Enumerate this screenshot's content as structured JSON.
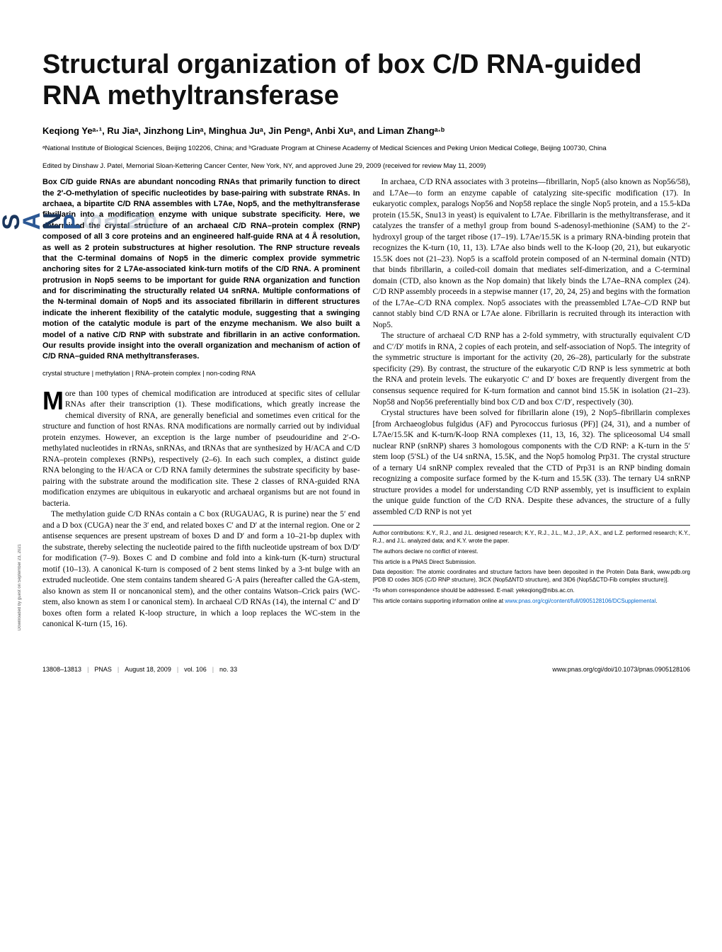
{
  "title": "Structural organization of box C/D RNA-guided RNA methyltransferase",
  "authors": "Keqiong Yeᵃ·¹, Ru Jiaᵃ, Jinzhong Linᵃ, Minghua Juᵃ, Jin Pengᵃ, Anbi Xuᵃ, and Liman Zhangᵃ·ᵇ",
  "affiliations": "ᵃNational Institute of Biological Sciences, Beijing 102206, China; and ᵇGraduate Program at Chinese Academy of Medical Sciences and Peking Union Medical College, Beijing 100730, China",
  "edited_by": "Edited by Dinshaw J. Patel, Memorial Sloan-Kettering Cancer Center, New York, NY, and approved June 29, 2009 (received for review May 11, 2009)",
  "abstract": "Box C/D guide RNAs are abundant noncoding RNAs that primarily function to direct the 2′-O-methylation of specific nucleotides by base-pairing with substrate RNAs. In archaea, a bipartite C/D RNA assembles with L7Ae, Nop5, and the methyltransferase fibrillarin into a modification enzyme with unique substrate specificity. Here, we determined the crystal structure of an archaeal C/D RNA–protein complex (RNP) composed of all 3 core proteins and an engineered half-guide RNA at 4 Å resolution, as well as 2 protein substructures at higher resolution. The RNP structure reveals that the C-terminal domains of Nop5 in the dimeric complex provide symmetric anchoring sites for 2 L7Ae-associated kink-turn motifs of the C/D RNA. A prominent protrusion in Nop5 seems to be important for guide RNA organization and function and for discriminating the structurally related U4 snRNA. Multiple conformations of the N-terminal domain of Nop5 and its associated fibrillarin in different structures indicate the inherent flexibility of the catalytic module, suggesting that a swinging motion of the catalytic module is part of the enzyme mechanism. We also built a model of a native C/D RNP with substrate and fibrillarin in an active conformation. Our results provide insight into the overall organization and mechanism of action of C/D RNA–guided RNA methyltransferases.",
  "keywords": "crystal structure | methylation | RNA–protein complex | non-coding RNA",
  "dropcap_letter": "M",
  "body_col1_p1": "ore than 100 types of chemical modification are introduced at specific sites of cellular RNAs after their transcription (1). These modifications, which greatly increase the chemical diversity of RNA, are generally beneficial and sometimes even critical for the structure and function of host RNAs. RNA modifications are normally carried out by individual protein enzymes. However, an exception is the large number of pseudouridine and 2′-O-methylated nucleotides in rRNAs, snRNAs, and tRNAs that are synthesized by H/ACA and C/D RNA–protein complexes (RNPs), respectively (2–6). In each such complex, a distinct guide RNA belonging to the H/ACA or C/D RNA family determines the substrate specificity by base-pairing with the substrate around the modification site. These 2 classes of RNA-guided RNA modification enzymes are ubiquitous in eukaryotic and archaeal organisms but are not found in bacteria.",
  "body_col1_p2": "The methylation guide C/D RNAs contain a C box (RUGAUAG, R is purine) near the 5′ end and a D box (CUGA) near the 3′ end, and related boxes C′ and D′ at the internal region. One or 2 antisense sequences are present upstream of boxes D and D′ and form a 10–21-bp duplex with the substrate, thereby selecting the nucleotide paired to the fifth nucleotide upstream of box D/D′ for modification (7–9). Boxes C and D combine and fold into a kink-turn (K-turn) structural motif (10–13). A canonical K-turn is composed of 2 bent stems linked by a 3-nt bulge with an extruded nucleotide. One stem contains tandem sheared G·A pairs (hereafter called the GA-stem, also known as stem II or noncanonical stem), and the other contains Watson–Crick pairs (WC-stem, also known as stem I or canonical stem). In archaeal C/D RNAs (14), the internal C′ and D′ boxes often form a related K-loop structure, in which a loop replaces the WC-stem in the canonical K-turn (15, 16).",
  "body_col2_p1": "In archaea, C/D RNA associates with 3 proteins—fibrillarin, Nop5 (also known as Nop56/58), and L7Ae—to form an enzyme capable of catalyzing site-specific modification (17). In eukaryotic complex, paralogs Nop56 and Nop58 replace the single Nop5 protein, and a 15.5-kDa protein (15.5K, Snu13 in yeast) is equivalent to L7Ae. Fibrillarin is the methyltransferase, and it catalyzes the transfer of a methyl group from bound S-adenosyl-methionine (SAM) to the 2′-hydroxyl group of the target ribose (17–19). L7Ae/15.5K is a primary RNA-binding protein that recognizes the K-turn (10, 11, 13). L7Ae also binds well to the K-loop (20, 21), but eukaryotic 15.5K does not (21–23). Nop5 is a scaffold protein composed of an N-terminal domain (NTD) that binds fibrillarin, a coiled-coil domain that mediates self-dimerization, and a C-terminal domain (CTD, also known as the Nop domain) that likely binds the L7Ae–RNA complex (24). C/D RNP assembly proceeds in a stepwise manner (17, 20, 24, 25) and begins with the formation of the L7Ae–C/D RNA complex. Nop5 associates with the preassembled L7Ae–C/D RNP but cannot stably bind C/D RNA or L7Ae alone. Fibrillarin is recruited through its interaction with Nop5.",
  "body_col2_p2": "The structure of archaeal C/D RNP has a 2-fold symmetry, with structurally equivalent C/D and C′/D′ motifs in RNA, 2 copies of each protein, and self-association of Nop5. The integrity of the symmetric structure is important for the activity (20, 26–28), particularly for the substrate specificity (29). By contrast, the structure of the eukaryotic C/D RNP is less symmetric at both the RNA and protein levels. The eukaryotic C′ and D′ boxes are frequently divergent from the consensus sequence required for K-turn formation and cannot bind 15.5K in isolation (21–23). Nop58 and Nop56 preferentially bind box C/D and box C′/D′, respectively (30).",
  "body_col2_p3": "Crystal structures have been solved for fibrillarin alone (19), 2 Nop5–fibrillarin complexes [from Archaeoglobus fulgidus (AF) and Pyrococcus furiosus (PF)] (24, 31), and a number of L7Ae/15.5K and K-turn/K-loop RNA complexes (11, 13, 16, 32). The spliceosomal U4 small nuclear RNP (snRNP) shares 3 homologous components with the C/D RNP: a K-turn in the 5′ stem loop (5′SL) of the U4 snRNA, 15.5K, and the Nop5 homolog Prp31. The crystal structure of a ternary U4 snRNP complex revealed that the CTD of Prp31 is an RNP binding domain recognizing a composite surface formed by the K-turn and 15.5K (33). The ternary U4 snRNP structure provides a model for understanding C/D RNP assembly, yet is insufficient to explain the unique guide function of the C/D RNA. Despite these advances, the structure of a fully assembled C/D RNP is not yet",
  "footnotes": {
    "contributions": "Author contributions: K.Y., R.J., and J.L. designed research; K.Y., R.J., J.L., M.J., J.P., A.X., and L.Z. performed research; K.Y., R.J., and J.L. analyzed data; and K.Y. wrote the paper.",
    "conflict": "The authors declare no conflict of interest.",
    "direct": "This article is a PNAS Direct Submission.",
    "deposition": "Data deposition: The atomic coordinates and structure factors have been deposited in the Protein Data Bank, www.pdb.org [PDB ID codes 3ID5 (C/D RNP structure), 3ICX (Nop5ΔNTD structure), and 3ID6 (Nop5ΔCTD-Fib complex structure)].",
    "correspondence": "¹To whom correspondence should be addressed. E-mail: yekeqiong@nibs.ac.cn.",
    "supporting_pre": "This article contains supporting information online at ",
    "supporting_link": "www.pnas.org/cgi/content/full/0905128106/DCSupplemental",
    "supporting_post": "."
  },
  "footer": {
    "pages": "13808–13813",
    "journal": "PNAS",
    "date": "August 18, 2009",
    "volume": "vol. 106",
    "issue": "no. 33",
    "doi": "www.pnas.org/cgi/doi/10.1073/pnas.0905128106"
  },
  "downloaded": "Downloaded by guest on September 23, 2021",
  "colors": {
    "text": "#000000",
    "link": "#0066cc",
    "logo_blue": "#2c5894",
    "logo_navy": "#1a365d",
    "logo_pale": "#a0aec0"
  },
  "fonts": {
    "title_size": 38,
    "body_size": 11.5,
    "abstract_size": 11,
    "footnote_size": 8
  }
}
